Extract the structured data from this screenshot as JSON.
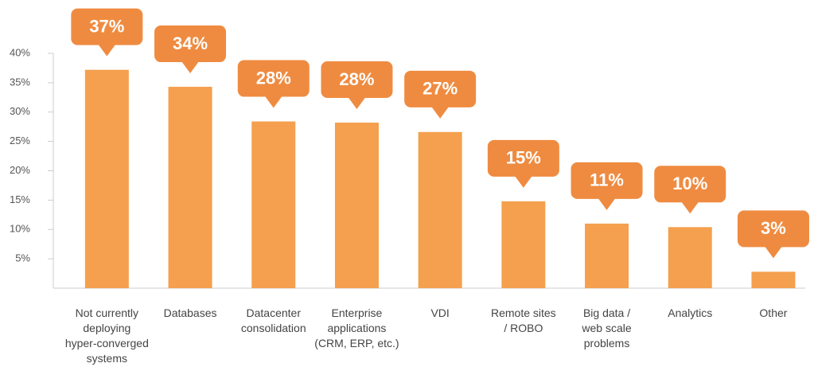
{
  "chart_data": {
    "type": "bar",
    "categories": [
      "Not currently\ndeploying\nhyper-converged\nsystems",
      "Databases",
      "Datacenter\nconsolidation",
      "Enterprise\napplications\n(CRM, ERP, etc.)",
      "VDI",
      "Remote sites\n/ ROBO",
      "Big data /\nweb scale\nproblems",
      "Analytics",
      "Other"
    ],
    "values": [
      37.2,
      34.3,
      28.4,
      28.2,
      26.6,
      14.8,
      11.0,
      10.4,
      2.8
    ],
    "value_labels": [
      "37%",
      "34%",
      "28%",
      "28%",
      "27%",
      "15%",
      "11%",
      "10%",
      "3%"
    ],
    "color": "#f4a04e",
    "label_color": "#ef8b40",
    "ylim": [
      0,
      40
    ],
    "yticks": [
      {
        "value": 5,
        "label": "5%"
      },
      {
        "value": 10,
        "label": "10%"
      },
      {
        "value": 15,
        "label": "15%"
      },
      {
        "value": 20,
        "label": "20%"
      },
      {
        "value": 25,
        "label": "25%"
      },
      {
        "value": 30,
        "label": "30%"
      },
      {
        "value": 35,
        "label": "35%"
      },
      {
        "value": 40,
        "label": "40%"
      }
    ]
  }
}
